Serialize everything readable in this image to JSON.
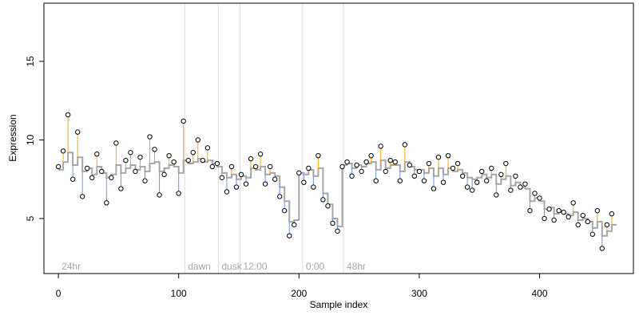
{
  "chart_data": {
    "type": "scatter",
    "xlabel": "Sample index",
    "ylabel": "Expression",
    "xlim": [
      -12,
      478
    ],
    "ylim": [
      1.5,
      18.7
    ],
    "x_ticks": [
      0,
      100,
      200,
      300,
      400
    ],
    "y_ticks": [
      5,
      10,
      15
    ],
    "grid": false,
    "phases": [
      {
        "label": "24hr",
        "start": 0
      },
      {
        "label": "dawn",
        "start": 105
      },
      {
        "label": "dusk",
        "start": 133
      },
      {
        "label": "12:00",
        "start": 151
      },
      {
        "label": "0:00",
        "start": 203
      },
      {
        "label": "48hr",
        "start": 237
      }
    ],
    "colors": {
      "points_fill": "#ffffff",
      "points_stroke": "#000000",
      "fit_line": "#a6a6a6",
      "residual_above": "#ffa500",
      "residual_below": "#6495ed",
      "phase_divider": "#dcdcdc",
      "phase_label": "#a6a6a6"
    },
    "series": [
      {
        "x": [
          0,
          4,
          8,
          12,
          16,
          20,
          24,
          28,
          32,
          36,
          40,
          44,
          48,
          52,
          56,
          60,
          64,
          68,
          72,
          76,
          80,
          84,
          88,
          92,
          96,
          100,
          104,
          108,
          112,
          116,
          120,
          124,
          128,
          132,
          136,
          140,
          144,
          148,
          152,
          156,
          160,
          164,
          168,
          172,
          176,
          180,
          184,
          188,
          192,
          196,
          200,
          204,
          208,
          212,
          216,
          220,
          224,
          228,
          232,
          236,
          240,
          244,
          248,
          252,
          256,
          260,
          264,
          268,
          272,
          276,
          280,
          284,
          288,
          292,
          296,
          300,
          304,
          308,
          312,
          316,
          320,
          324,
          328,
          332,
          336,
          340,
          344,
          348,
          352,
          356,
          360,
          364,
          368,
          372,
          376,
          380,
          384,
          388,
          392,
          396,
          400,
          404,
          408,
          412,
          416,
          420,
          424,
          428,
          432,
          436,
          440,
          444,
          448,
          452,
          456,
          460
        ],
        "y": [
          8.3,
          9.3,
          11.6,
          7.5,
          10.5,
          6.4,
          8.2,
          7.6,
          9.1,
          8.0,
          6.0,
          7.6,
          9.8,
          6.9,
          8.7,
          9.2,
          8.0,
          8.9,
          7.4,
          10.2,
          9.4,
          6.5,
          7.8,
          9.0,
          8.6,
          6.6,
          11.2,
          8.7,
          9.2,
          10.0,
          8.7,
          9.5,
          8.3,
          8.5,
          7.6,
          6.7,
          8.3,
          7.0,
          7.8,
          7.2,
          8.8,
          8.3,
          9.1,
          7.2,
          8.3,
          7.5,
          6.4,
          5.5,
          3.9,
          4.6,
          7.9,
          7.3,
          8.2,
          7.0,
          9.0,
          6.2,
          5.8,
          4.7,
          4.2,
          8.3,
          8.6,
          7.7,
          8.4,
          8.0,
          8.6,
          9.0,
          7.4,
          9.6,
          8.0,
          8.7,
          8.6,
          7.4,
          9.7,
          8.4,
          7.7,
          8.0,
          7.4,
          8.5,
          6.9,
          8.9,
          7.3,
          9.0,
          8.2,
          8.5,
          7.7,
          7.0,
          6.8,
          7.3,
          8.0,
          7.4,
          8.2,
          6.5,
          7.8,
          8.5,
          6.8,
          7.7,
          7.0,
          7.2,
          5.5,
          6.6,
          6.3,
          5.0,
          5.6,
          4.9,
          5.5,
          5.4,
          5.1,
          6.0,
          4.6,
          5.2,
          4.8,
          4.0,
          5.5,
          3.1,
          4.6,
          5.3
        ],
        "fit": [
          8.1,
          8.6,
          9.2,
          8.4,
          8.9,
          8.0,
          8.2,
          7.8,
          8.3,
          7.9,
          7.6,
          7.8,
          8.4,
          7.9,
          8.2,
          8.4,
          8.1,
          8.3,
          8.0,
          8.5,
          8.6,
          8.0,
          8.2,
          8.4,
          8.3,
          7.9,
          8.7,
          8.5,
          8.6,
          8.8,
          8.6,
          8.7,
          8.5,
          8.3,
          7.9,
          7.6,
          7.8,
          7.5,
          7.7,
          7.6,
          8.2,
          8.1,
          8.3,
          7.8,
          7.9,
          7.7,
          7.0,
          6.1,
          4.8,
          4.9,
          7.9,
          7.8,
          8.1,
          7.7,
          8.2,
          6.6,
          5.9,
          5.0,
          4.5,
          8.4,
          8.5,
          8.2,
          8.4,
          8.3,
          8.5,
          8.6,
          8.1,
          8.7,
          8.2,
          8.4,
          8.4,
          8.0,
          8.6,
          8.3,
          8.1,
          8.1,
          7.9,
          8.2,
          7.7,
          8.2,
          7.8,
          8.2,
          8.0,
          8.1,
          7.9,
          7.6,
          7.5,
          7.6,
          7.8,
          7.6,
          7.8,
          7.2,
          7.5,
          7.7,
          7.1,
          7.3,
          7.0,
          6.9,
          6.1,
          6.3,
          6.1,
          5.6,
          5.7,
          5.3,
          5.4,
          5.3,
          5.2,
          5.4,
          4.9,
          5.0,
          4.8,
          4.4,
          4.8,
          3.9,
          4.2,
          4.6
        ]
      }
    ]
  }
}
